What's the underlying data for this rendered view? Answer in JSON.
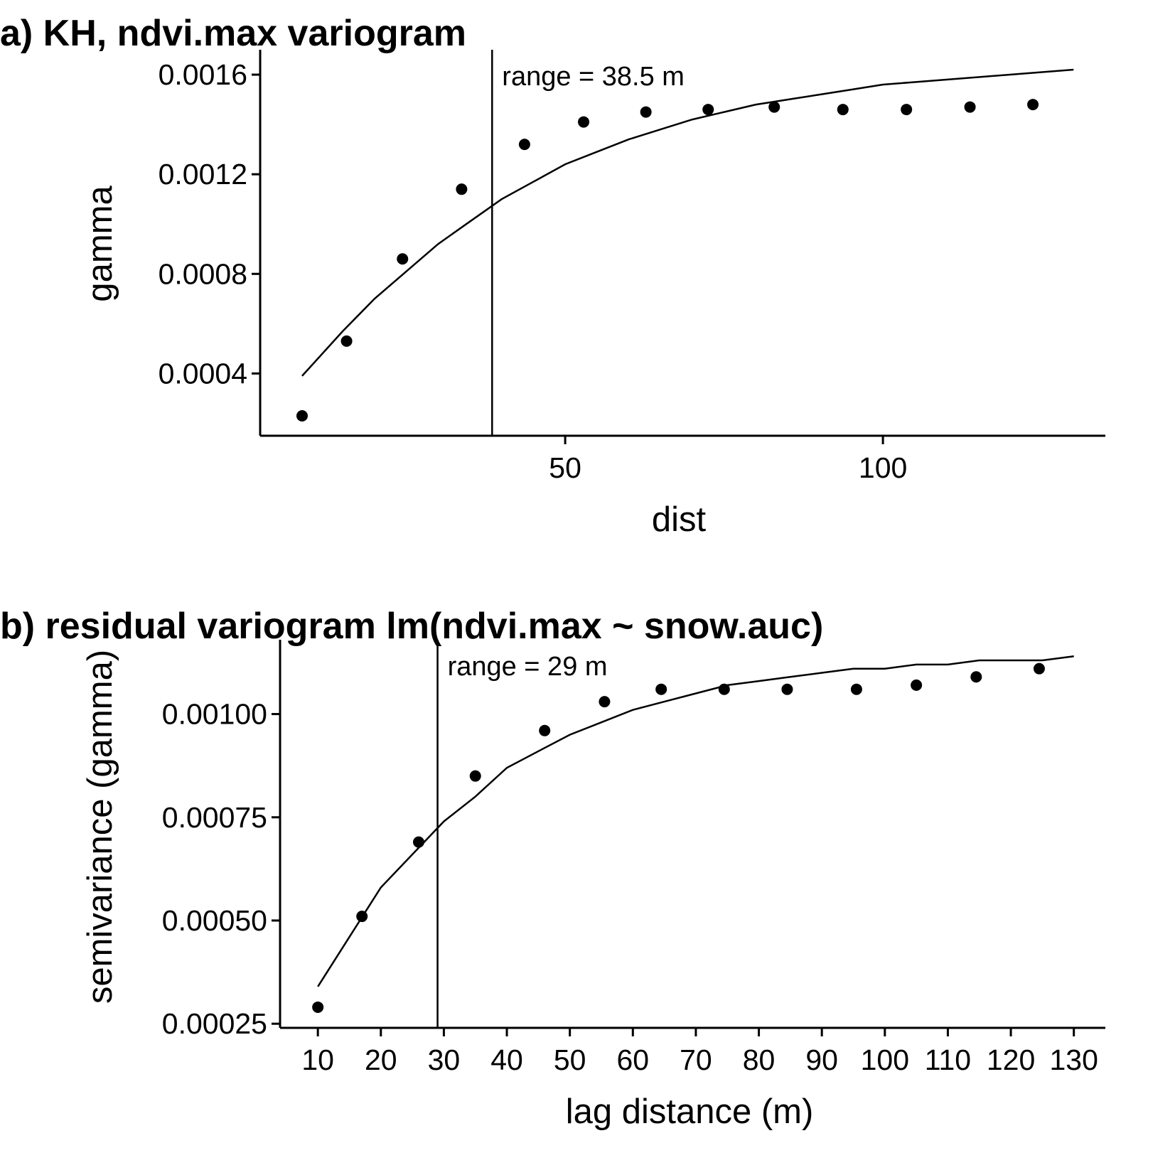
{
  "chart_data": [
    {
      "type": "scatter",
      "title": "a) KH, ndvi.max variogram",
      "xlabel": "dist",
      "ylabel": "gamma",
      "xlim": [
        2,
        135
      ],
      "ylim": [
        0.00015,
        0.0017
      ],
      "xticks": [
        50,
        100
      ],
      "xtick_labels": [
        "50",
        "100"
      ],
      "yticks": [
        0.0004,
        0.0008,
        0.0012,
        0.0016
      ],
      "ytick_labels": [
        "0.0004",
        "0.0008",
        "0.0012",
        "0.0016"
      ],
      "grid": false,
      "series": [
        {
          "kind": "points",
          "x": [
            8.6,
            15.6,
            24.4,
            33.7,
            43.6,
            52.9,
            62.7,
            72.5,
            82.9,
            93.7,
            103.7,
            113.7,
            123.6
          ],
          "y": [
            0.00023,
            0.00053,
            0.00086,
            0.00114,
            0.00132,
            0.00141,
            0.00145,
            0.00146,
            0.00147,
            0.00146,
            0.00146,
            0.00147,
            0.00148
          ]
        },
        {
          "kind": "line",
          "x": [
            8.6,
            15,
            20,
            25,
            30,
            35,
            40,
            45,
            50,
            55,
            60,
            65,
            70,
            75,
            80,
            85,
            90,
            95,
            100,
            105,
            110,
            115,
            120,
            125,
            130
          ],
          "y": [
            0.00039,
            0.00057,
            0.0007,
            0.00081,
            0.00092,
            0.00101,
            0.0011,
            0.00117,
            0.00124,
            0.00129,
            0.00134,
            0.00138,
            0.00142,
            0.00145,
            0.00148,
            0.0015,
            0.00152,
            0.00154,
            0.00156,
            0.00157,
            0.00158,
            0.00159,
            0.0016,
            0.00161,
            0.00162
          ]
        }
      ],
      "vline": {
        "x": 38.5,
        "label": "range = 38.5 m"
      }
    },
    {
      "type": "scatter",
      "title": "b) residual variogram lm(ndvi.max ~ snow.auc)",
      "xlabel": "lag distance (m)",
      "ylabel": "semivariance (gamma)",
      "xlim": [
        4,
        135
      ],
      "ylim": [
        0.00024,
        0.00118
      ],
      "xticks": [
        10,
        20,
        30,
        40,
        50,
        60,
        70,
        80,
        90,
        100,
        110,
        120,
        130
      ],
      "xtick_labels": [
        "10",
        "20",
        "30",
        "40",
        "50",
        "60",
        "70",
        "80",
        "90",
        "100",
        "110",
        "120",
        "130"
      ],
      "yticks": [
        0.00025,
        0.0005,
        0.00075,
        0.001
      ],
      "ytick_labels": [
        "0.00025",
        "0.00050",
        "0.00075",
        "0.00100"
      ],
      "grid": false,
      "series": [
        {
          "kind": "points",
          "x": [
            10,
            17,
            26,
            35,
            46,
            55.5,
            64.5,
            74.5,
            84.5,
            95.5,
            105,
            114.5,
            124.5
          ],
          "y": [
            0.00029,
            0.00051,
            0.00069,
            0.00085,
            0.00096,
            0.00103,
            0.00106,
            0.00106,
            0.00106,
            0.00106,
            0.00107,
            0.00109,
            0.00111
          ]
        },
        {
          "kind": "line",
          "x": [
            10,
            15,
            20,
            25,
            30,
            35,
            40,
            45,
            50,
            55,
            60,
            65,
            70,
            75,
            80,
            85,
            90,
            95,
            100,
            105,
            110,
            115,
            120,
            125,
            130
          ],
          "y": [
            0.00034,
            0.00046,
            0.00058,
            0.00066,
            0.00074,
            0.0008,
            0.00087,
            0.00091,
            0.00095,
            0.00098,
            0.00101,
            0.00103,
            0.00105,
            0.00107,
            0.00108,
            0.00109,
            0.0011,
            0.00111,
            0.00111,
            0.00112,
            0.00112,
            0.00113,
            0.00113,
            0.00113,
            0.00114
          ]
        }
      ],
      "vline": {
        "x": 29,
        "label": "range = 29 m"
      }
    }
  ]
}
